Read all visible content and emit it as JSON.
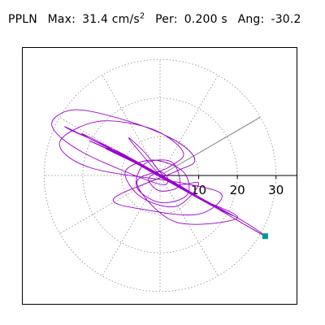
{
  "header": {
    "station": "PPLN",
    "max_label": "Max:",
    "max_value": "31.4 cm/s",
    "max_unit_exp": "2",
    "per_label": "Per:",
    "per_value": "0.200 s",
    "ang_label": "Ang:",
    "ang_value": "-30.2"
  },
  "chart_data": {
    "type": "line",
    "title": "PPLN",
    "projection": "polar",
    "radial_ticks": [
      10,
      20,
      30
    ],
    "radial_tick_labels": [
      "10",
      "20",
      "30"
    ],
    "rmax": 33,
    "grid": true,
    "grid_ring_values": [
      10,
      20,
      30
    ],
    "angular_grid_step_deg": 30,
    "azimuth_line_deg": -30.2,
    "max_value": 31.4,
    "period_s": 0.2,
    "end_marker": {
      "x": 27.2,
      "y": -15.7
    },
    "series": [
      {
        "color": "#9900cc",
        "marker_color": "#009999",
        "points": [
          [
            0.0,
            0.0
          ],
          [
            2.1,
            -1.2
          ],
          [
            4.5,
            -2.8
          ],
          [
            1.2,
            -0.4
          ],
          [
            -3.5,
            2.1
          ],
          [
            -6.2,
            3.4
          ],
          [
            -2.0,
            0.9
          ],
          [
            3.1,
            -1.6
          ],
          [
            6.8,
            -4.1
          ],
          [
            2.5,
            -1.2
          ],
          [
            -4.2,
            2.6
          ],
          [
            -8.5,
            4.9
          ],
          [
            -5.1,
            2.8
          ],
          [
            1.0,
            -0.3
          ],
          [
            7.5,
            -4.5
          ],
          [
            10.2,
            -5.8
          ],
          [
            4.1,
            -2.0
          ],
          [
            -3.9,
            2.4
          ],
          [
            -10.8,
            6.2
          ],
          [
            -13.5,
            7.1
          ],
          [
            -7.0,
            3.9
          ],
          [
            2.2,
            -1.1
          ],
          [
            9.8,
            -5.6
          ],
          [
            14.2,
            -8.0
          ],
          [
            8.1,
            -4.5
          ],
          [
            -1.5,
            0.9
          ],
          [
            -11.2,
            6.3
          ],
          [
            -17.5,
            9.2
          ],
          [
            -20.1,
            10.8
          ],
          [
            -12.4,
            6.9
          ],
          [
            -1.0,
            0.5
          ],
          [
            11.6,
            -6.5
          ],
          [
            18.9,
            -10.4
          ],
          [
            12.3,
            -7.2
          ],
          [
            0.4,
            -0.6
          ],
          [
            -14.6,
            7.8
          ],
          [
            -22.8,
            11.6
          ],
          [
            -24.1,
            12.4
          ],
          [
            -15.3,
            8.1
          ],
          [
            -2.7,
            1.5
          ],
          [
            12.5,
            -6.9
          ],
          [
            22.0,
            -12.1
          ],
          [
            27.2,
            -15.7
          ],
          [
            19.5,
            -11.3
          ],
          [
            5.2,
            -3.0
          ],
          [
            -9.1,
            4.8
          ],
          [
            -18.3,
            9.0
          ],
          [
            -10.0,
            5.1
          ],
          [
            3.6,
            -1.8
          ],
          [
            15.4,
            -8.8
          ],
          [
            9.0,
            -5.2
          ],
          [
            -4.6,
            2.5
          ],
          [
            -14.0,
            6.9
          ],
          [
            -6.3,
            3.2
          ],
          [
            6.1,
            -3.4
          ],
          [
            12.0,
            -7.0
          ],
          [
            4.8,
            -2.9
          ],
          [
            -7.2,
            3.9
          ],
          [
            -12.6,
            6.2
          ],
          [
            -3.3,
            1.7
          ],
          [
            8.7,
            -4.9
          ],
          [
            5.0,
            -2.6
          ],
          [
            -5.8,
            3.0
          ],
          [
            -1.1,
            0.6
          ],
          [
            6.4,
            -3.7
          ],
          [
            1.9,
            -1.0
          ],
          [
            -4.4,
            2.3
          ],
          [
            0.8,
            -0.5
          ],
          [
            3.9,
            -2.1
          ],
          [
            -2.6,
            1.4
          ],
          [
            1.5,
            -0.9
          ],
          [
            0.0,
            0.0
          ],
          [
            -8.0,
            9.5
          ],
          [
            -4.0,
            6.0
          ],
          [
            3.0,
            -2.0
          ],
          [
            10.0,
            -2.0
          ],
          [
            4.0,
            -8.0
          ],
          [
            -5.0,
            -5.5
          ],
          [
            -9.0,
            1.0
          ],
          [
            -2.0,
            4.0
          ],
          [
            6.0,
            1.0
          ],
          [
            7.0,
            -5.0
          ],
          [
            0.0,
            -7.0
          ],
          [
            -6.0,
            -3.0
          ],
          [
            -4.0,
            3.0
          ],
          [
            3.0,
            3.5
          ],
          [
            5.0,
            -2.5
          ],
          [
            0.0,
            -4.0
          ],
          [
            -3.0,
            -1.0
          ],
          [
            0.0,
            1.0
          ],
          [
            2.0,
            -1.0
          ],
          [
            -1.0,
            -2.0
          ],
          [
            -20.0,
            6.0
          ],
          [
            -28.0,
            13.0
          ],
          [
            -22.0,
            17.0
          ],
          [
            -8.0,
            14.0
          ],
          [
            4.0,
            9.0
          ],
          [
            9.0,
            4.0
          ],
          [
            4.0,
            1.0
          ],
          [
            -12.0,
            -6.0
          ],
          [
            -3.0,
            -9.0
          ],
          [
            10.0,
            -10.0
          ],
          [
            16.0,
            -5.0
          ],
          [
            6.0,
            -2.0
          ],
          [
            -18.0,
            2.0
          ],
          [
            -26.0,
            8.5
          ],
          [
            -16.0,
            14.0
          ],
          [
            -2.0,
            12.0
          ],
          [
            6.0,
            6.0
          ],
          [
            2.0,
            2.0
          ],
          [
            -6.0,
            -2.0
          ],
          [
            4.0,
            -12.0
          ],
          [
            20.0,
            -11.0
          ],
          [
            10.0,
            -6.0
          ]
        ]
      }
    ]
  }
}
